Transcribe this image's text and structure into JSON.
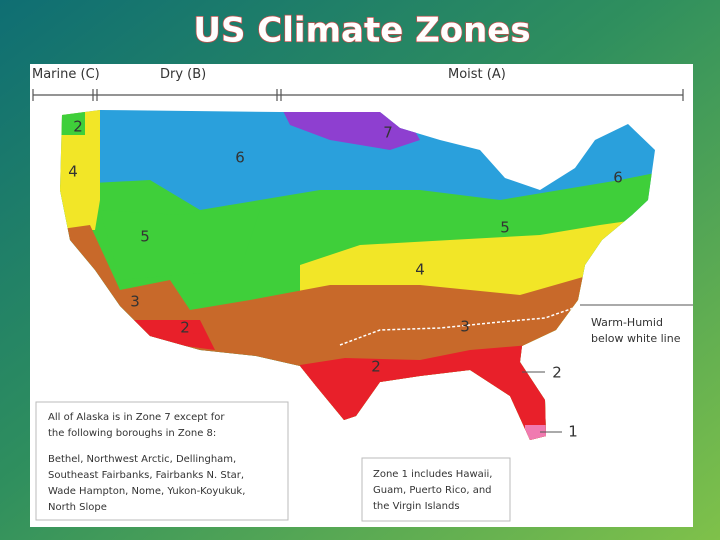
{
  "title": "US Climate Zones",
  "header": {
    "marine": "Marine (C)",
    "dry": "Dry (B)",
    "moist": "Moist (A)"
  },
  "zone_labels": [
    "2",
    "4",
    "5",
    "3",
    "2",
    "6",
    "7",
    "6",
    "5",
    "4",
    "3",
    "2"
  ],
  "callouts": {
    "warm_humid_line1": "Warm-Humid",
    "warm_humid_line2": "below white line",
    "zone2": "2",
    "zone1": "1"
  },
  "notes": {
    "alaska": [
      "All of Alaska is in Zone 7 except for",
      "the following boroughs in Zone 8:",
      "Bethel, Northwest Arctic, Dellingham,",
      "Southeast Fairbanks, Fairbanks N. Star,",
      "Wade Hampton, Nome, Yukon-Koyukuk,",
      "North Slope"
    ],
    "zone1": [
      "Zone 1 includes Hawaii,",
      "Guam, Puerto Rico, and",
      "the Virgin Islands"
    ]
  }
}
